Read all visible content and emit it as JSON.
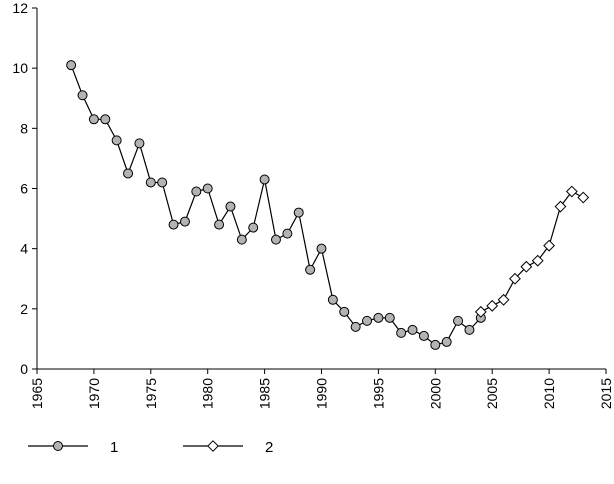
{
  "chart_data": {
    "type": "line",
    "xlim": [
      1965,
      2015
    ],
    "ylim": [
      0,
      12
    ],
    "x_ticks": [
      1965,
      1970,
      1975,
      1980,
      1985,
      1990,
      1995,
      2000,
      2005,
      2010,
      2015
    ],
    "y_ticks": [
      0,
      2,
      4,
      6,
      8,
      10,
      12
    ],
    "grid": false,
    "legend_position": "bottom-left",
    "series": [
      {
        "name": "1",
        "marker": "circle",
        "marker_color": "#b3b3b3",
        "line_color": "#000000",
        "points": [
          [
            1968,
            10.1
          ],
          [
            1969,
            9.1
          ],
          [
            1970,
            8.3
          ],
          [
            1971,
            8.3
          ],
          [
            1972,
            7.6
          ],
          [
            1973,
            6.5
          ],
          [
            1974,
            7.5
          ],
          [
            1975,
            6.2
          ],
          [
            1976,
            6.2
          ],
          [
            1977,
            4.8
          ],
          [
            1978,
            4.9
          ],
          [
            1979,
            5.9
          ],
          [
            1980,
            6.0
          ],
          [
            1981,
            4.8
          ],
          [
            1982,
            5.4
          ],
          [
            1983,
            4.3
          ],
          [
            1984,
            4.7
          ],
          [
            1985,
            6.3
          ],
          [
            1986,
            4.3
          ],
          [
            1987,
            4.5
          ],
          [
            1988,
            5.2
          ],
          [
            1989,
            3.3
          ],
          [
            1990,
            4.0
          ],
          [
            1991,
            2.3
          ],
          [
            1992,
            1.9
          ],
          [
            1993,
            1.4
          ],
          [
            1994,
            1.6
          ],
          [
            1995,
            1.7
          ],
          [
            1996,
            1.7
          ],
          [
            1997,
            1.2
          ],
          [
            1998,
            1.3
          ],
          [
            1999,
            1.1
          ],
          [
            2000,
            0.8
          ],
          [
            2001,
            0.9
          ],
          [
            2002,
            1.6
          ],
          [
            2003,
            1.3
          ],
          [
            2004,
            1.7
          ]
        ]
      },
      {
        "name": "2",
        "marker": "diamond",
        "marker_color": "#ffffff",
        "line_color": "#000000",
        "points": [
          [
            2004,
            1.9
          ],
          [
            2005,
            2.1
          ],
          [
            2006,
            2.3
          ],
          [
            2007,
            3.0
          ],
          [
            2008,
            3.4
          ],
          [
            2009,
            3.6
          ],
          [
            2010,
            4.1
          ],
          [
            2011,
            5.4
          ],
          [
            2012,
            5.9
          ],
          [
            2013,
            5.7
          ]
        ]
      }
    ]
  }
}
